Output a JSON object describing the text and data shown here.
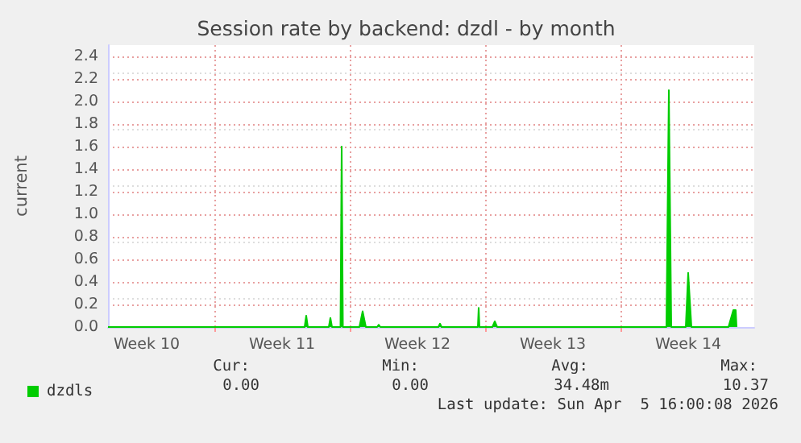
{
  "chart_data": {
    "type": "area",
    "title": "Session rate by backend: dzdl - by month",
    "ylabel": "current",
    "series": [
      {
        "name": "dzdls",
        "color": "#00cc00",
        "x": [
          "2026-03-03T12:00",
          "2026-03-13T16:00",
          "2026-03-13T18:00",
          "2026-03-13T20:00",
          "2026-03-14T22:00",
          "2026-03-15T00:00",
          "2026-03-15T02:00",
          "2026-03-15T12:30",
          "2026-03-15T14:00",
          "2026-03-15T15:30",
          "2026-03-16T12:00",
          "2026-03-16T16:00",
          "2026-03-16T20:00",
          "2026-03-17T10:00",
          "2026-03-17T12:00",
          "2026-03-17T14:00",
          "2026-03-20T14:00",
          "2026-03-20T16:00",
          "2026-03-20T18:00",
          "2026-03-22T15:00",
          "2026-03-22T16:00",
          "2026-03-22T17:00",
          "2026-03-23T09:00",
          "2026-03-23T12:00",
          "2026-03-23T15:00",
          "2026-04-01T09:00",
          "2026-04-01T12:00",
          "2026-04-01T15:00",
          "2026-04-02T09:00",
          "2026-04-02T12:00",
          "2026-04-02T16:00",
          "2026-04-04T14:00",
          "2026-04-04T20:00",
          "2026-04-04T23:00",
          "2026-04-05T00:00"
        ],
        "values": [
          0,
          0,
          0.1,
          0,
          0,
          0.08,
          0,
          0,
          1.6,
          0,
          0,
          0.14,
          0,
          0,
          0.02,
          0,
          0,
          0.03,
          0,
          0,
          0.17,
          0,
          0,
          0.05,
          0,
          0,
          2.1,
          0,
          0,
          0.48,
          0,
          0,
          0.15,
          0.15,
          0
        ]
      }
    ],
    "xlim": [
      "2026-03-03T12:00",
      "2026-04-05T22:00"
    ],
    "xticks": [
      {
        "value": "2026-03-05T12:00",
        "label": "Week 10"
      },
      {
        "value": "2026-03-09",
        "label": null
      },
      {
        "value": "2026-03-12T12:00",
        "label": "Week 11"
      },
      {
        "value": "2026-03-16",
        "label": null
      },
      {
        "value": "2026-03-19T12:00",
        "label": "Week 12"
      },
      {
        "value": "2026-03-23",
        "label": null
      },
      {
        "value": "2026-03-26T12:00",
        "label": "Week 13"
      },
      {
        "value": "2026-03-30",
        "label": null
      },
      {
        "value": "2026-04-02T12:00",
        "label": "Week 14"
      }
    ],
    "ylim": [
      0,
      2.5
    ],
    "yticks": [
      {
        "value": 0,
        "label": "0.0"
      },
      0.2,
      0.4,
      0.6,
      0.8,
      {
        "value": 1,
        "label": "1.0"
      },
      1.2,
      1.4,
      1.6,
      1.8,
      {
        "value": 2,
        "label": "2.0"
      },
      2.2,
      2.4
    ],
    "grid": true,
    "legend": "bottom left",
    "marker": "none",
    "annotations": [
      "Cur:",
      "Min:",
      "Avg:",
      "Max:",
      "0.00",
      "0.00",
      "34.48m",
      "10.37",
      "Last update: Sun Apr  5 16:00:08 2026"
    ]
  }
}
